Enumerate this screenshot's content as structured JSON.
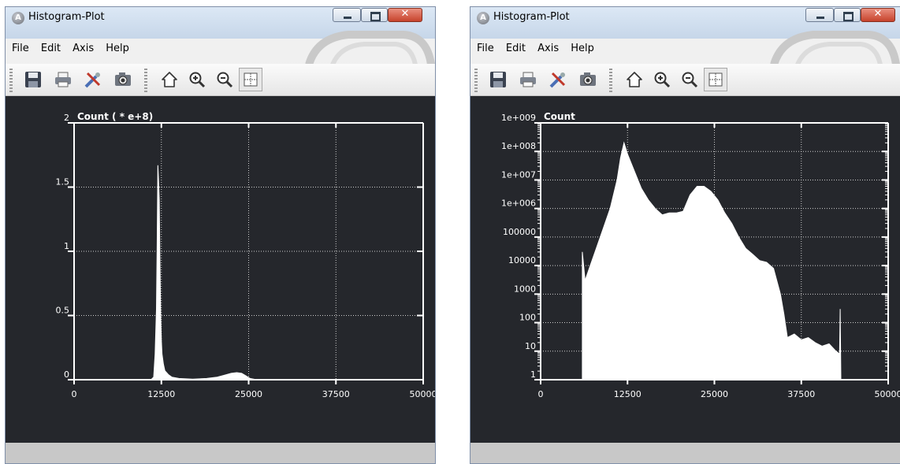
{
  "windows": [
    {
      "title": "Histogram-Plot",
      "menu": [
        "File",
        "Edit",
        "Axis",
        "Help"
      ],
      "toolbar_icons": [
        "save-icon",
        "print-icon",
        "tools-icon",
        "camera-icon",
        "home-icon",
        "zoom-in-icon",
        "zoom-out-icon",
        "grid-icon"
      ],
      "chart_data": {
        "type": "area",
        "y_scale": "linear",
        "ylabel": "Count ( * e+8)",
        "x_ticks": [
          "0",
          "12500",
          "25000",
          "37500",
          "50000"
        ],
        "y_ticks": [
          "0",
          "0.5",
          "1",
          "1.5",
          "2"
        ],
        "xlim": [
          0,
          50000
        ],
        "ylim": [
          0,
          2
        ],
        "grid": true,
        "points": [
          [
            11000,
            0
          ],
          [
            11400,
            0.02
          ],
          [
            11600,
            0.2
          ],
          [
            11800,
            0.55
          ],
          [
            11900,
            1.05
          ],
          [
            12000,
            1.67
          ],
          [
            12100,
            1.55
          ],
          [
            12200,
            1.4
          ],
          [
            12300,
            0.9
          ],
          [
            12400,
            0.5
          ],
          [
            12500,
            0.3
          ],
          [
            12600,
            0.2
          ],
          [
            12800,
            0.12
          ],
          [
            13000,
            0.07
          ],
          [
            13500,
            0.04
          ],
          [
            14000,
            0.02
          ],
          [
            15000,
            0.01
          ],
          [
            17000,
            0.005
          ],
          [
            19000,
            0.01
          ],
          [
            20500,
            0.02
          ],
          [
            21500,
            0.035
          ],
          [
            22500,
            0.05
          ],
          [
            23300,
            0.055
          ],
          [
            24000,
            0.05
          ],
          [
            24600,
            0.03
          ],
          [
            25200,
            0.01
          ],
          [
            26000,
            0.002
          ],
          [
            27000,
            0
          ]
        ]
      },
      "colors": {
        "plot_bg": "#25272c",
        "fill": "#ffffff"
      }
    },
    {
      "title": "Histogram-Plot",
      "menu": [
        "File",
        "Edit",
        "Axis",
        "Help"
      ],
      "toolbar_icons": [
        "save-icon",
        "print-icon",
        "tools-icon",
        "camera-icon",
        "home-icon",
        "zoom-in-icon",
        "zoom-out-icon",
        "grid-icon"
      ],
      "chart_data": {
        "type": "area",
        "y_scale": "log",
        "ylabel": "Count",
        "x_ticks": [
          "0",
          "12500",
          "25000",
          "37500",
          "50000"
        ],
        "y_ticks": [
          "1",
          "10",
          "100",
          "1000",
          "10000",
          "100000",
          "1e+006",
          "1e+007",
          "1e+008",
          "1e+009"
        ],
        "xlim": [
          0,
          50000
        ],
        "ylim": [
          1,
          1000000000
        ],
        "grid": true,
        "points": [
          [
            6000,
            1
          ],
          [
            6000,
            30000
          ],
          [
            6400,
            3000
          ],
          [
            7000,
            8000
          ],
          [
            8000,
            40000
          ],
          [
            9000,
            200000
          ],
          [
            10000,
            1000000
          ],
          [
            11000,
            10000000
          ],
          [
            11500,
            60000000
          ],
          [
            12000,
            200000000
          ],
          [
            12500,
            80000000
          ],
          [
            13500,
            20000000
          ],
          [
            14500,
            5000000
          ],
          [
            15500,
            2000000
          ],
          [
            16500,
            1000000
          ],
          [
            17500,
            600000
          ],
          [
            18500,
            700000
          ],
          [
            19500,
            700000
          ],
          [
            20500,
            800000
          ],
          [
            21500,
            3000000
          ],
          [
            22500,
            6000000
          ],
          [
            23500,
            6000000
          ],
          [
            24500,
            4000000
          ],
          [
            25500,
            2000000
          ],
          [
            26500,
            700000
          ],
          [
            27500,
            300000
          ],
          [
            28500,
            100000
          ],
          [
            29500,
            40000
          ],
          [
            30500,
            25000
          ],
          [
            31500,
            15000
          ],
          [
            32500,
            13000
          ],
          [
            33500,
            8000
          ],
          [
            34500,
            1000
          ],
          [
            35000,
            200
          ],
          [
            35500,
            30
          ],
          [
            36500,
            40
          ],
          [
            37500,
            25
          ],
          [
            38500,
            30
          ],
          [
            39500,
            20
          ],
          [
            40500,
            15
          ],
          [
            41500,
            18
          ],
          [
            42500,
            10
          ],
          [
            43000,
            8
          ],
          [
            43100,
            300
          ],
          [
            43200,
            1
          ]
        ]
      },
      "colors": {
        "plot_bg": "#25272c",
        "fill": "#ffffff"
      }
    }
  ]
}
